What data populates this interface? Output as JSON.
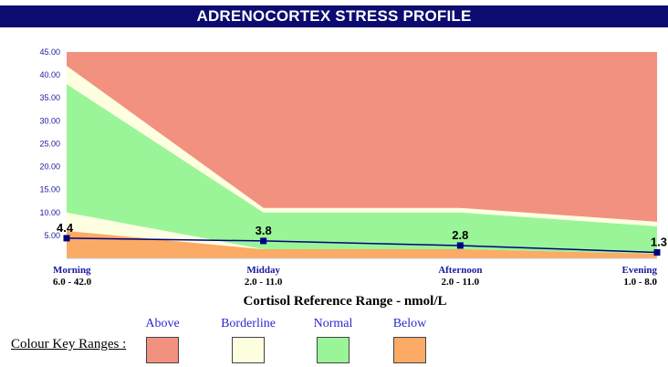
{
  "title": "ADRENOCORTEX STRESS PROFILE",
  "axis_title": "Cortisol Reference Range - nmol/L",
  "colour_key": {
    "label": "Colour Key Ranges :",
    "items": [
      {
        "name": "Above",
        "color": "#f2917f"
      },
      {
        "name": "Borderline",
        "color": "#fefee0"
      },
      {
        "name": "Normal",
        "color": "#9af598"
      },
      {
        "name": "Below",
        "color": "#fbab65"
      }
    ]
  },
  "chart_data": {
    "type": "area",
    "title": "ADRENOCORTEX STRESS PROFILE",
    "xlabel": "Cortisol Reference Range - nmol/L",
    "ylabel": "",
    "ylim": [
      0,
      45
    ],
    "yticks": [
      "5.00",
      "10.00",
      "15.00",
      "20.00",
      "25.00",
      "30.00",
      "35.00",
      "40.00",
      "45.00"
    ],
    "categories": [
      "Morning",
      "Midday",
      "Afternoon",
      "Evening"
    ],
    "ranges": [
      "6.0 - 42.0",
      "2.0 - 11.0",
      "2.0 - 11.0",
      "1.0 - 8.0"
    ],
    "bands": [
      {
        "name": "Below",
        "color": "#fbab65",
        "upper": [
          6.0,
          2.0,
          2.0,
          1.0
        ]
      },
      {
        "name": "Borderline",
        "color": "#fefee0",
        "upper": [
          10.0,
          2.0,
          2.0,
          1.0
        ]
      },
      {
        "name": "Normal",
        "color": "#9af598",
        "upper": [
          38.0,
          10.0,
          10.0,
          7.0
        ]
      },
      {
        "name": "Borderline",
        "color": "#fefee0",
        "upper": [
          42.0,
          11.0,
          11.0,
          8.0
        ]
      },
      {
        "name": "Above",
        "color": "#f2917f",
        "upper": [
          45.0,
          45.0,
          45.0,
          45.0
        ]
      }
    ],
    "series": [
      {
        "values": [
          4.4,
          3.8,
          2.8,
          1.3
        ],
        "labels": [
          "4.4",
          "3.8",
          "2.8",
          "1.3"
        ],
        "color": "#000080"
      }
    ],
    "grid": false,
    "legend": "bottom"
  }
}
